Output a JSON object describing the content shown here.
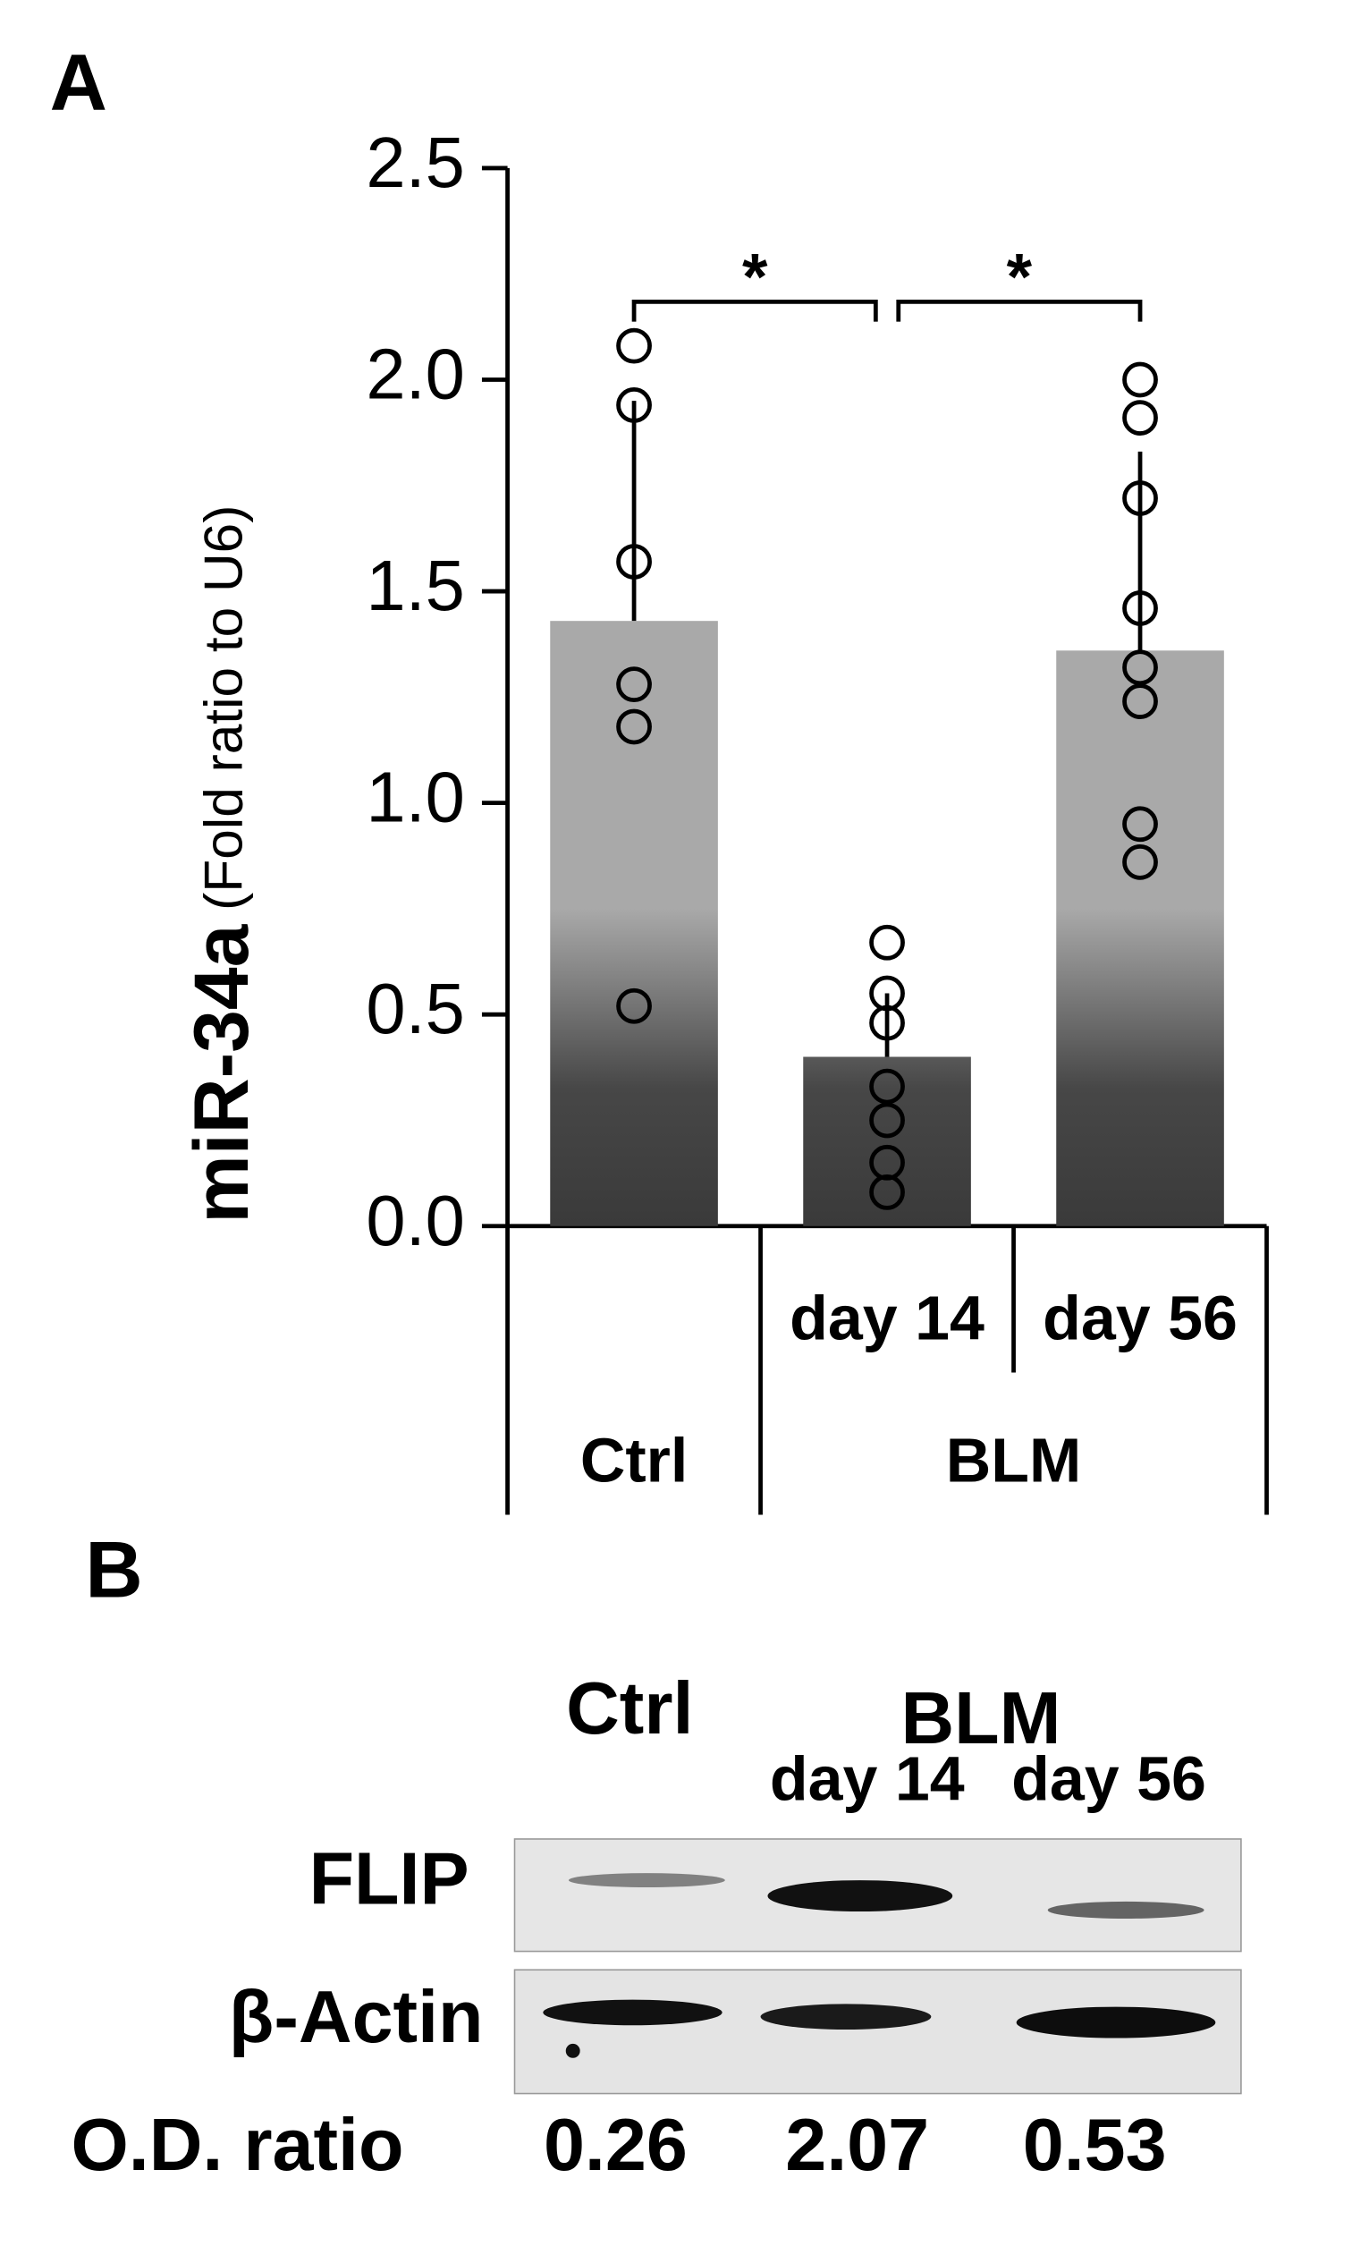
{
  "chart_data": {
    "type": "bar",
    "panel_label": "A",
    "ylabel": "miR-34a",
    "ylabel_note": "(Fold ratio to U6)",
    "categories": [
      null,
      "day 14",
      "day 56"
    ],
    "group_labels": [
      "Ctrl",
      "BLM"
    ],
    "values": [
      1.43,
      0.4,
      1.36
    ],
    "errors": [
      0.52,
      0.15,
      0.47
    ],
    "points": [
      [
        2.08,
        1.94,
        1.57,
        1.28,
        1.18,
        0.52
      ],
      [
        0.67,
        0.55,
        0.48,
        0.33,
        0.25,
        0.15,
        0.08
      ],
      [
        2.0,
        1.91,
        1.72,
        1.46,
        1.32,
        1.24,
        0.95,
        0.86
      ]
    ],
    "significance": [
      "*",
      "*"
    ],
    "color": "#a9a9a9",
    "ylim": [
      0,
      2.5
    ],
    "yticks": [
      {
        "value": 0,
        "label": "0.0"
      },
      0.5,
      {
        "value": 1,
        "label": "1.0"
      },
      1.5,
      {
        "value": 2,
        "label": "2.0"
      },
      2.5
    ]
  },
  "blot": {
    "panel_label": "B",
    "group_labels": [
      "Ctrl",
      "BLM"
    ],
    "lane_labels": [
      "day 14",
      "day 56"
    ],
    "rows": [
      "FLIP",
      "β-Actin"
    ],
    "od_label": "O.D. ratio",
    "od_values": [
      0.26,
      2.07,
      0.53
    ]
  }
}
